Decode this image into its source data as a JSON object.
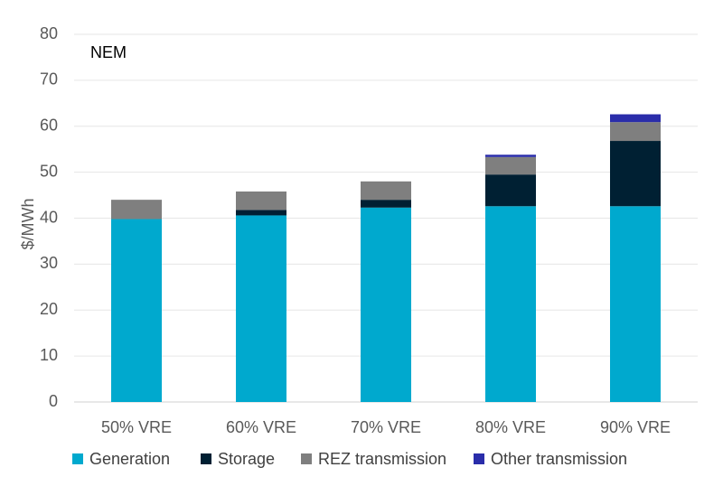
{
  "chart_data": {
    "type": "bar",
    "stacked": true,
    "annotation": "NEM",
    "xlabel": "",
    "ylabel": "$/MWh",
    "ylim": [
      0,
      80
    ],
    "yticks": [
      "0",
      "10",
      "20",
      "30",
      "40",
      "50",
      "60",
      "70",
      "80"
    ],
    "grid": true,
    "legend_position": "bottom",
    "categories": [
      "50% VRE",
      "60% VRE",
      "70% VRE",
      "80% VRE",
      "90% VRE"
    ],
    "series": [
      {
        "name": "Generation",
        "color": "#00A9CE",
        "values": [
          39.8,
          40.6,
          42.3,
          42.6,
          42.6
        ]
      },
      {
        "name": "Storage",
        "color": "#002033",
        "values": [
          0,
          1.2,
          1.7,
          6.9,
          14.2
        ]
      },
      {
        "name": "REZ transmission",
        "color": "#7F7F7F",
        "values": [
          4.2,
          4.0,
          4.0,
          3.8,
          4.1
        ]
      },
      {
        "name": "Other transmission",
        "color": "#2A2DAA",
        "values": [
          0,
          0,
          0,
          0.5,
          1.7
        ]
      }
    ]
  }
}
